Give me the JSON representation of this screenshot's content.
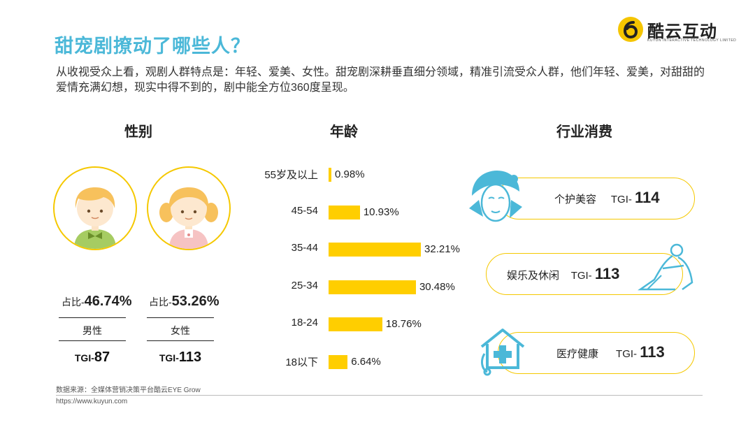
{
  "title": "甜宠剧撩动了哪些人？",
  "logo": {
    "name": "酷云互动",
    "sub": "KUYUN INTERACTIVE TECHNOLOGY LIMITED"
  },
  "intro": "从收视受众上看，观剧人群特点是：年轻、爱美、女性。甜宠剧深耕垂直细分领域，精准引流受众人群，他们年轻、爱美，对甜甜的爱情充满幻想，现实中得不到的，剧中能全方位360度呈现。",
  "sections": {
    "gender": "性别",
    "age": "年龄",
    "industry": "行业消费"
  },
  "gender": {
    "male": {
      "prefix": "占比-",
      "pct": "46.74%",
      "label": "男性",
      "tgi_prefix": "TGI-",
      "tgi": "87"
    },
    "female": {
      "prefix": "占比-",
      "pct": "53.26%",
      "label": "女性",
      "tgi_prefix": "TGI-",
      "tgi": "113"
    }
  },
  "chart_data": {
    "type": "bar",
    "orientation": "horizontal",
    "categories": [
      "55岁及以上",
      "45-54",
      "35-44",
      "25-34",
      "18-24",
      "18以下"
    ],
    "values": [
      0.98,
      10.93,
      32.21,
      30.48,
      18.76,
      6.64
    ],
    "labels": [
      "0.98%",
      "10.93%",
      "32.21%",
      "30.48%",
      "18.76%",
      "6.64%"
    ],
    "color": "#ffce00"
  },
  "industry": [
    {
      "label": "个护美容",
      "tgi_prefix": "TGI- ",
      "tgi": "114",
      "icon": "beauty-face-icon"
    },
    {
      "label": "娱乐及休闲",
      "tgi_prefix": "TGI- ",
      "tgi": "113",
      "icon": "yoga-woman-icon"
    },
    {
      "label": "医疗健康",
      "tgi_prefix": "TGI- ",
      "tgi": "113",
      "icon": "medical-house-icon"
    }
  ],
  "footer": {
    "source": "数据来源：全媒体营销决策平台酷云EYE Grow",
    "url": "https://www.kuyun.com"
  },
  "colors": {
    "accent": "#4bb8d8",
    "yellow": "#ffce00",
    "teal_icon": "#4bb8d8"
  }
}
